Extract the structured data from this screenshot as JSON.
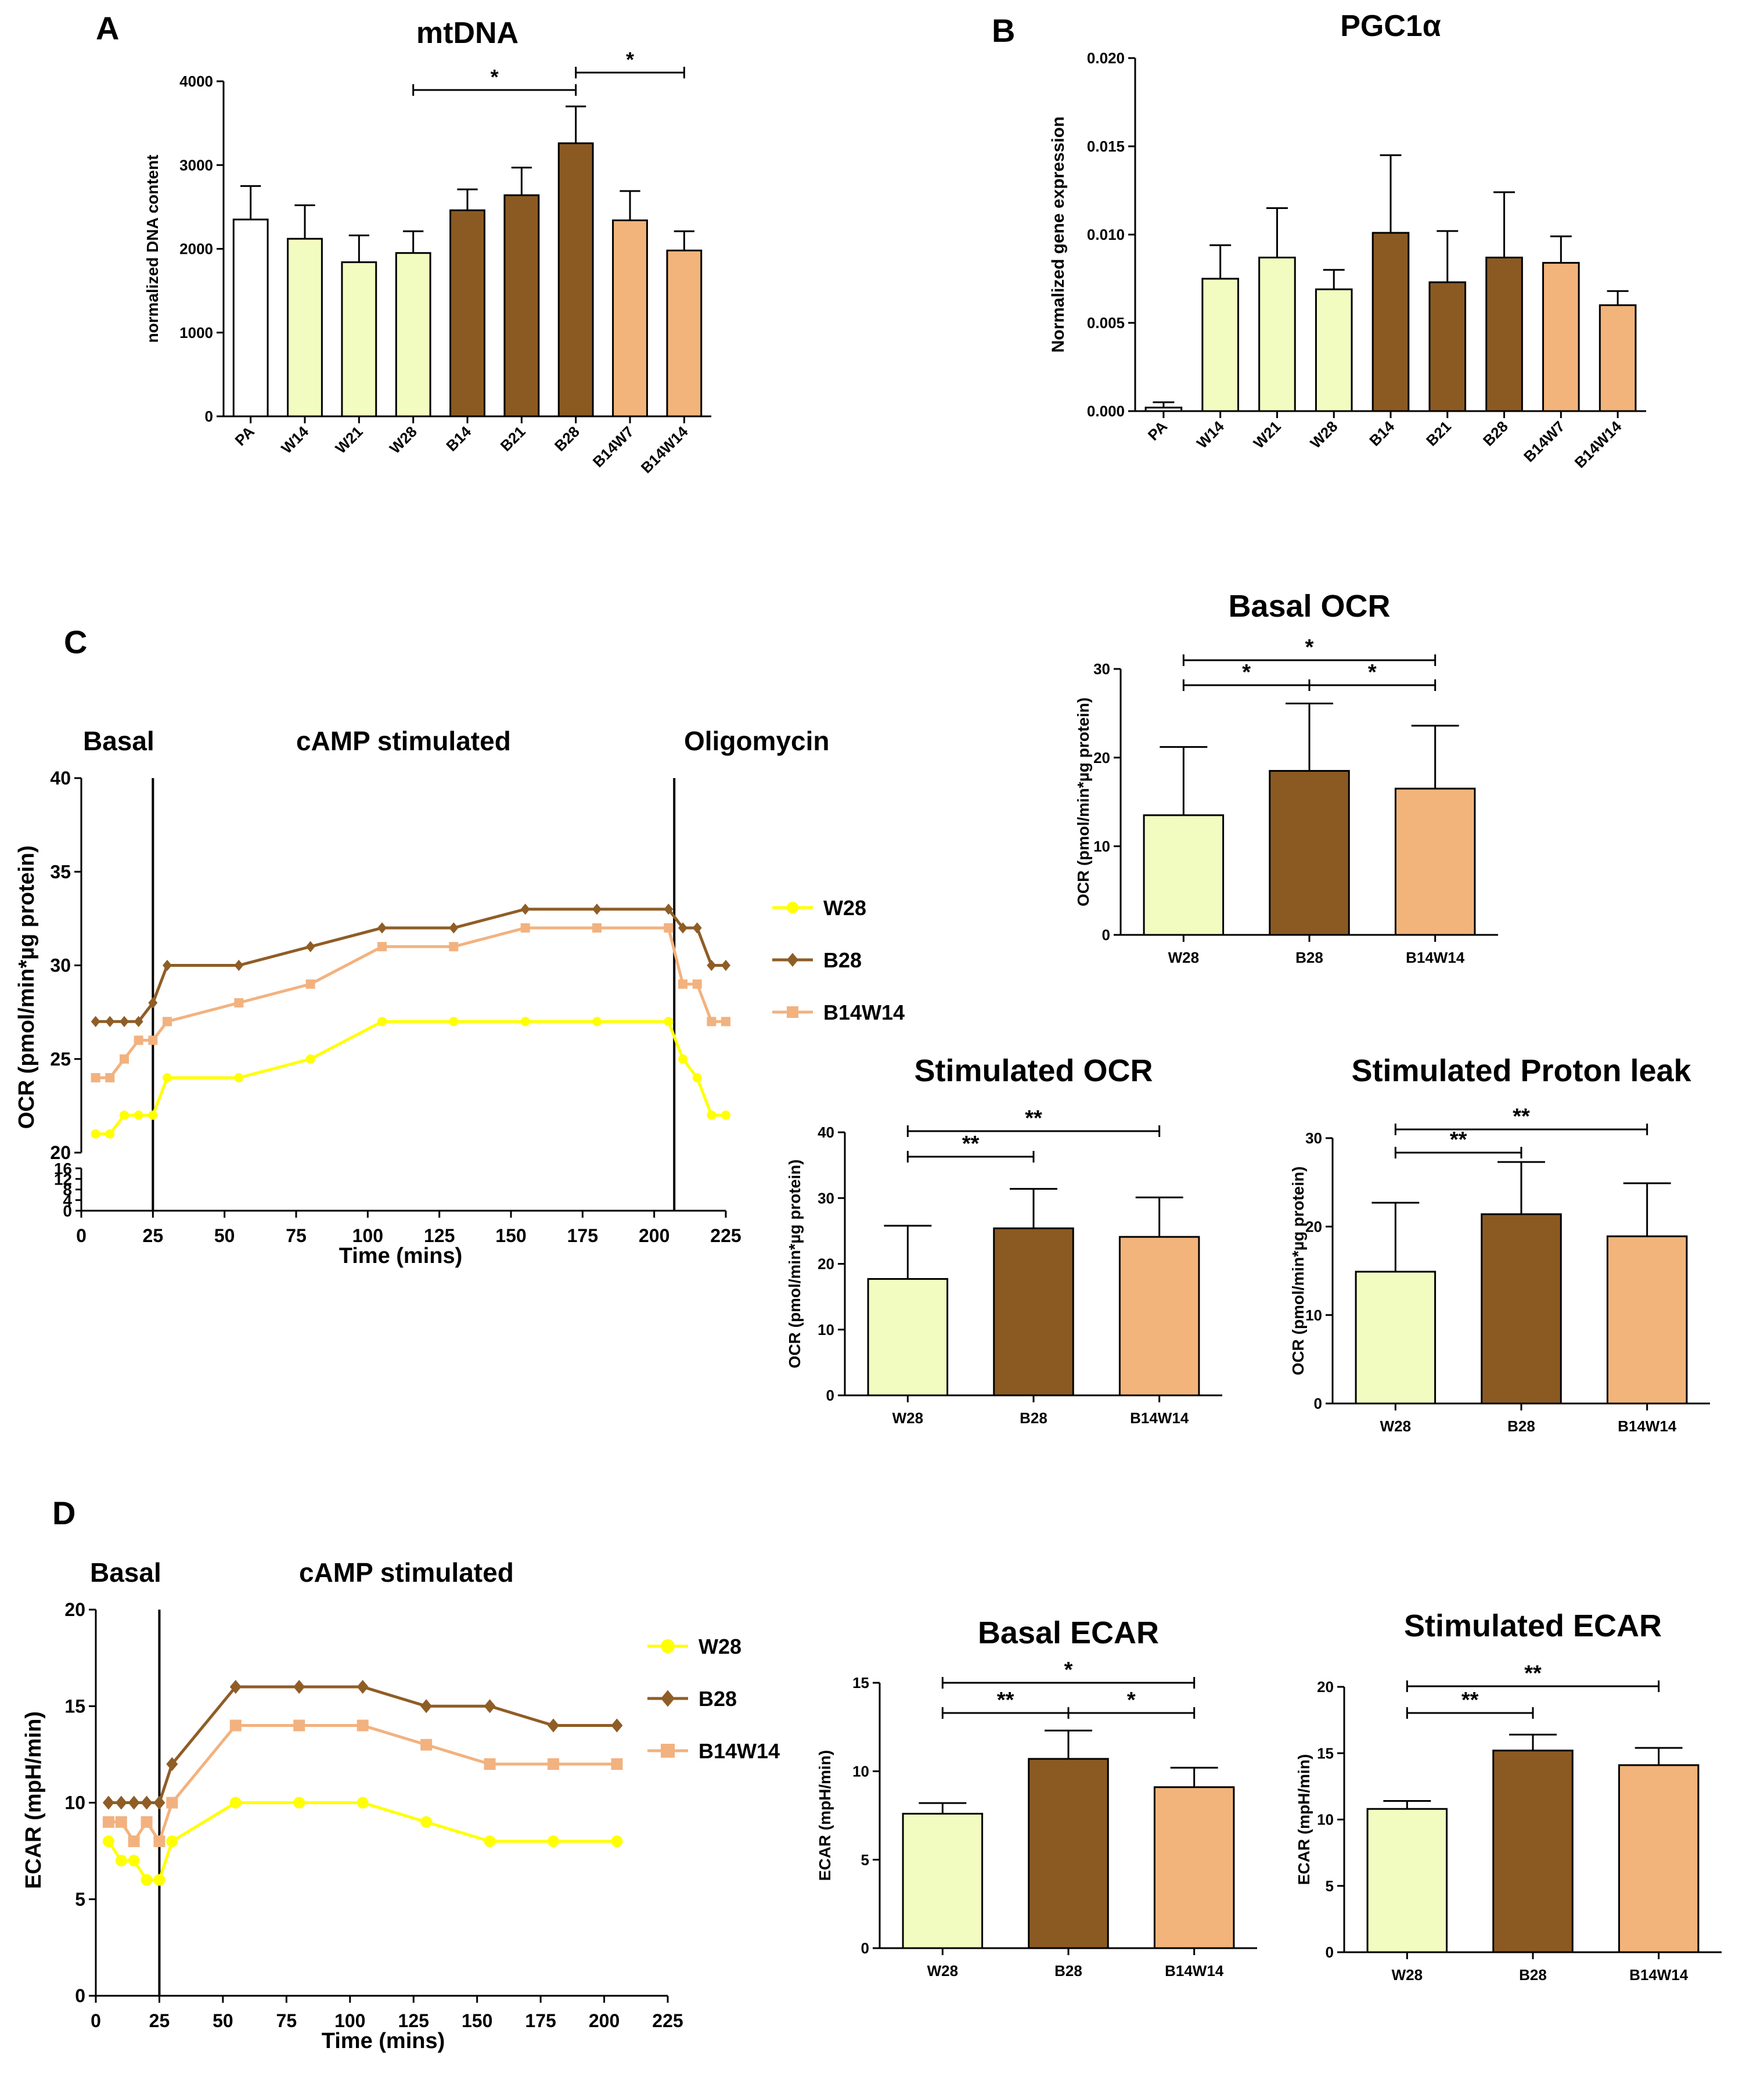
{
  "colors": {
    "white": "#ffffff",
    "light_yellow": "#f2fcc0",
    "brown": "#8b5a22",
    "peach": "#f2b47a",
    "yellow_line": "#ffff00",
    "brown_line": "#8f5d26",
    "peach_line": "#f2b27f"
  },
  "panel_letters": {
    "a": "A",
    "b": "B",
    "c": "C",
    "d": "D"
  },
  "chart_data": [
    {
      "id": "mtdna",
      "type": "bar",
      "title": "mtDNA",
      "ylabel": "normalized DNA content",
      "xlabel": "",
      "ylim": [
        0,
        4000
      ],
      "yticks": [
        "0",
        "1000",
        "2000",
        "3000",
        "4000"
      ],
      "categories": [
        "PA",
        "W14",
        "W21",
        "W28",
        "B14",
        "B21",
        "B28",
        "B14W7",
        "B14W14"
      ],
      "values": [
        2350,
        2120,
        1840,
        1950,
        2460,
        2640,
        3260,
        2340,
        1980
      ],
      "errors": [
        400,
        400,
        320,
        260,
        250,
        330,
        440,
        350,
        230
      ],
      "sig": [
        {
          "from": "W28",
          "to": "B28",
          "label": "*"
        },
        {
          "from": "B28",
          "to": "B14W14",
          "label": "*"
        }
      ]
    },
    {
      "id": "pgc1a",
      "type": "bar",
      "title": "PGC1α",
      "ylabel": "Normalized gene expression",
      "xlabel": "",
      "ylim": [
        0,
        0.02
      ],
      "yticks": [
        "0.000",
        "0.005",
        "0.010",
        "0.015",
        "0.020"
      ],
      "categories": [
        "PA",
        "W14",
        "W21",
        "W28",
        "B14",
        "B21",
        "B28",
        "B14W7",
        "B14W14"
      ],
      "values": [
        0.0002,
        0.0075,
        0.0087,
        0.0069,
        0.0101,
        0.0073,
        0.0087,
        0.0084,
        0.006
      ],
      "errors": [
        0.0003,
        0.0019,
        0.0028,
        0.0011,
        0.0044,
        0.0029,
        0.0037,
        0.0015,
        0.0008
      ]
    },
    {
      "id": "ocr_time",
      "type": "line",
      "ylabel": "OCR (pmol/min*µg protein)",
      "xlabel": "Time (mins)",
      "xlim": [
        0,
        225
      ],
      "xticks": [
        "0",
        "25",
        "50",
        "75",
        "100",
        "125",
        "150",
        "175",
        "200",
        "225"
      ],
      "ylim_upper": [
        20,
        40
      ],
      "yticks_upper": [
        "20",
        "25",
        "30",
        "35",
        "40"
      ],
      "ylim_lower": [
        0,
        16
      ],
      "yticks_lower": [
        "0",
        "4",
        "8",
        "12",
        "16"
      ],
      "phases": [
        {
          "label": "Basal"
        },
        {
          "label": "cAMP stimulated"
        },
        {
          "label": "Oligomycin"
        }
      ],
      "vlines": [
        25,
        207
      ],
      "x": [
        5,
        10,
        15,
        20,
        25,
        30,
        55,
        80,
        105,
        130,
        155,
        180,
        205,
        210,
        215,
        220,
        225
      ],
      "series": [
        {
          "name": "W28",
          "marker": "circle",
          "values": [
            21,
            21,
            22,
            22,
            22,
            24,
            24,
            25,
            27,
            27,
            27,
            27,
            27,
            25,
            24,
            22,
            22
          ]
        },
        {
          "name": "B28",
          "marker": "diamond",
          "values": [
            27,
            27,
            27,
            27,
            28,
            30,
            30,
            31,
            32,
            32,
            33,
            33,
            33,
            32,
            32,
            30,
            30
          ]
        },
        {
          "name": "B14W14",
          "marker": "square",
          "values": [
            24,
            24,
            25,
            26,
            26,
            27,
            28,
            29,
            31,
            31,
            32,
            32,
            32,
            29,
            29,
            27,
            27
          ]
        }
      ]
    },
    {
      "id": "basal_ocr",
      "type": "bar",
      "title": "Basal OCR",
      "ylabel": "OCR (pmol/min*µg protein)",
      "xlabel": "",
      "ylim": [
        0,
        30
      ],
      "yticks": [
        "0",
        "10",
        "20",
        "30"
      ],
      "categories": [
        "W28",
        "B28",
        "B14W14"
      ],
      "values": [
        13.5,
        18.5,
        16.5
      ],
      "errors": [
        7.7,
        7.6,
        7.1
      ],
      "sig": [
        {
          "from": "W28",
          "to": "B14W14",
          "label": "*"
        },
        {
          "from": "W28",
          "to": "B28",
          "label": "*"
        },
        {
          "from": "B28",
          "to": "B14W14",
          "label": "*"
        }
      ]
    },
    {
      "id": "stim_ocr",
      "type": "bar",
      "title": "Stimulated OCR",
      "ylabel": "OCR (pmol/min*µg protein)",
      "xlabel": "",
      "ylim": [
        0,
        40
      ],
      "yticks": [
        "0",
        "10",
        "20",
        "30",
        "40"
      ],
      "categories": [
        "W28",
        "B28",
        "B14W14"
      ],
      "values": [
        17.7,
        25.4,
        24.1
      ],
      "errors": [
        8.1,
        6.0,
        6.0
      ],
      "sig": [
        {
          "from": "W28",
          "to": "B14W14",
          "label": "**"
        },
        {
          "from": "W28",
          "to": "B28",
          "label": "**"
        }
      ]
    },
    {
      "id": "stim_proton",
      "type": "bar",
      "title": "Stimulated Proton leak",
      "ylabel": "OCR (pmol/min*µg protein)",
      "xlabel": "",
      "ylim": [
        0,
        30
      ],
      "yticks": [
        "0",
        "10",
        "20",
        "30"
      ],
      "categories": [
        "W28",
        "B28",
        "B14W14"
      ],
      "values": [
        14.9,
        21.4,
        18.9
      ],
      "errors": [
        7.8,
        5.9,
        6.0
      ],
      "sig": [
        {
          "from": "W28",
          "to": "B14W14",
          "label": "**"
        },
        {
          "from": "W28",
          "to": "B28",
          "label": "**"
        }
      ]
    },
    {
      "id": "ecar_time",
      "type": "line",
      "ylabel": "ECAR (mpH/min)",
      "xlabel": "Time (mins)",
      "xlim": [
        0,
        225
      ],
      "xticks": [
        "0",
        "25",
        "50",
        "75",
        "100",
        "125",
        "150",
        "175",
        "200",
        "225"
      ],
      "ylim": [
        0,
        20
      ],
      "yticks": [
        "0",
        "5",
        "10",
        "15",
        "20"
      ],
      "phases": [
        {
          "label": "Basal"
        },
        {
          "label": "cAMP stimulated"
        }
      ],
      "vlines": [
        25
      ],
      "x": [
        5,
        10,
        15,
        20,
        25,
        30,
        55,
        80,
        105,
        130,
        155,
        180,
        205
      ],
      "series": [
        {
          "name": "W28",
          "marker": "circle",
          "values": [
            8,
            7,
            7,
            6,
            6,
            8,
            10,
            10,
            10,
            9,
            8,
            8,
            8
          ]
        },
        {
          "name": "B28",
          "marker": "diamond",
          "values": [
            10,
            10,
            10,
            10,
            10,
            12,
            16,
            16,
            16,
            15,
            15,
            14,
            14
          ]
        },
        {
          "name": "B14W14",
          "marker": "square",
          "values": [
            9,
            9,
            8,
            9,
            8,
            10,
            14,
            14,
            14,
            13,
            12,
            12,
            12
          ]
        }
      ]
    },
    {
      "id": "basal_ecar",
      "type": "bar",
      "title": "Basal ECAR",
      "ylabel": "ECAR (mpH/min)",
      "xlabel": "",
      "ylim": [
        0,
        15
      ],
      "yticks": [
        "0",
        "5",
        "10",
        "15"
      ],
      "categories": [
        "W28",
        "B28",
        "B14W14"
      ],
      "values": [
        7.6,
        10.7,
        9.1
      ],
      "errors": [
        0.6,
        1.6,
        1.1
      ],
      "sig": [
        {
          "from": "W28",
          "to": "B14W14",
          "label": "*"
        },
        {
          "from": "W28",
          "to": "B28",
          "label": "**"
        },
        {
          "from": "B28",
          "to": "B14W14",
          "label": "*"
        }
      ]
    },
    {
      "id": "stim_ecar",
      "type": "bar",
      "title": "Stimulated ECAR",
      "ylabel": "ECAR (mpH/min)",
      "xlabel": "",
      "ylim": [
        0,
        20
      ],
      "yticks": [
        "0",
        "5",
        "10",
        "15",
        "20"
      ],
      "categories": [
        "W28",
        "B28",
        "B14W14"
      ],
      "values": [
        10.8,
        15.2,
        14.1
      ],
      "errors": [
        0.6,
        1.2,
        1.3
      ],
      "sig": [
        {
          "from": "W28",
          "to": "B14W14",
          "label": "**"
        },
        {
          "from": "W28",
          "to": "B28",
          "label": "**"
        }
      ]
    }
  ]
}
